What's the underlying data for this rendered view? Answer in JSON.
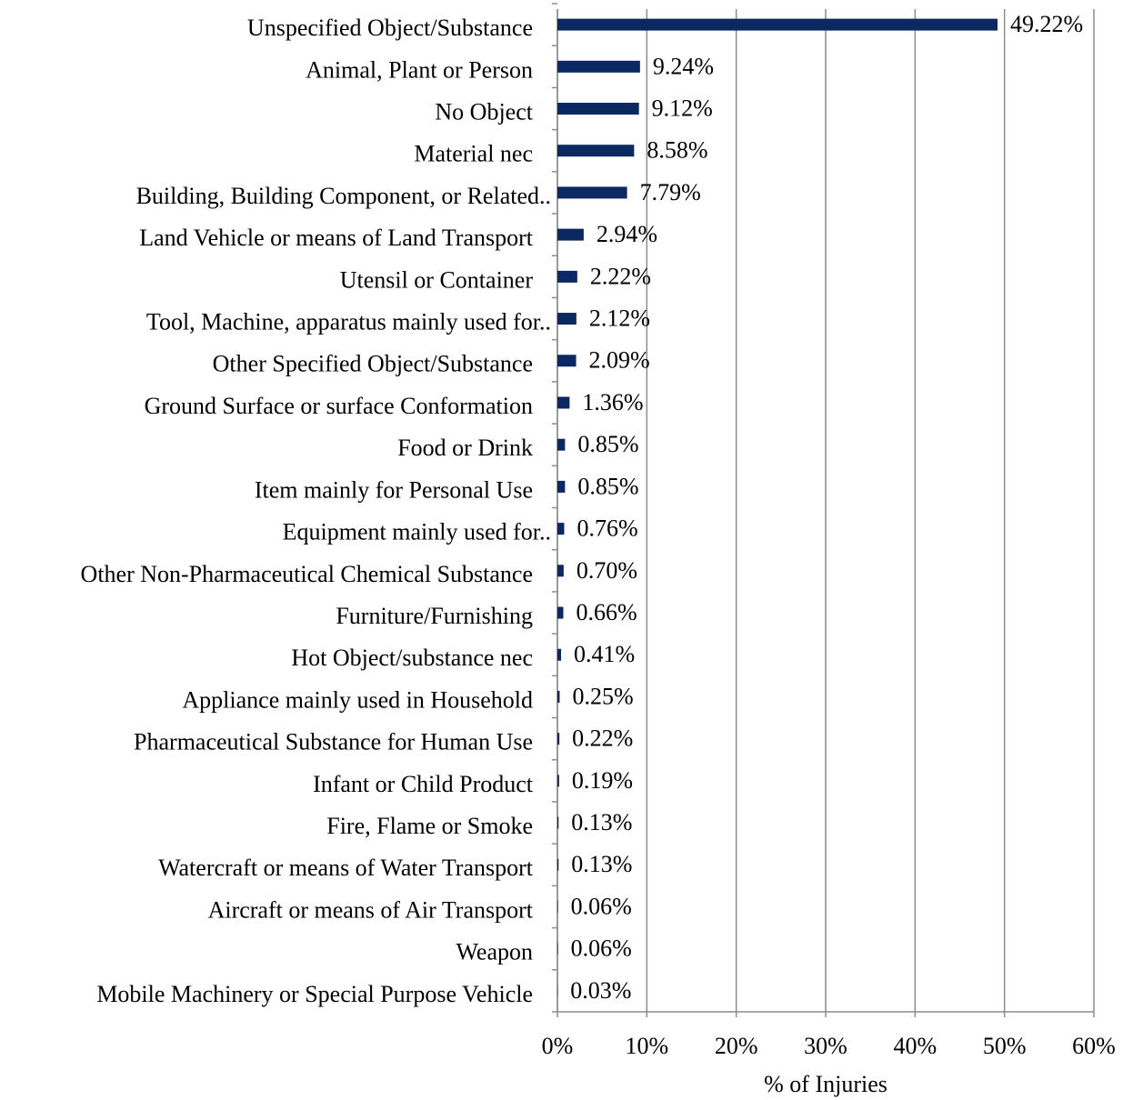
{
  "chart_data": {
    "type": "bar",
    "orientation": "horizontal",
    "x_label": "% of Injuries",
    "categories": [
      "Unspecified Object/Substance",
      "Animal, Plant or Person",
      "No Object",
      "Material nec",
      "Building, Building Component, or Related..",
      "Land Vehicle or means of Land Transport",
      "Utensil or Container",
      "Tool, Machine, apparatus mainly used for..",
      "Other Specified Object/Substance",
      "Ground Surface or surface Conformation",
      "Food or Drink",
      "Item mainly for Personal Use",
      "Equipment mainly used for..",
      "Other Non-Pharmaceutical Chemical Substance",
      "Furniture/Furnishing",
      "Hot Object/substance nec",
      "Appliance mainly used in Household",
      "Pharmaceutical Substance for Human Use",
      "Infant or Child Product",
      "Fire, Flame or Smoke",
      "Watercraft or means of Water Transport",
      "Aircraft or means of Air Transport",
      "Weapon",
      "Mobile Machinery or Special Purpose Vehicle"
    ],
    "values": [
      49.22,
      9.24,
      9.12,
      8.58,
      7.79,
      2.94,
      2.22,
      2.12,
      2.09,
      1.36,
      0.85,
      0.85,
      0.76,
      0.7,
      0.66,
      0.41,
      0.25,
      0.22,
      0.19,
      0.13,
      0.13,
      0.06,
      0.06,
      0.03
    ],
    "value_labels": [
      "49.22%",
      "9.24%",
      "9.12%",
      "8.58%",
      "7.79%",
      "2.94%",
      "2.22%",
      "2.12%",
      "2.09%",
      "1.36%",
      "0.85%",
      "0.85%",
      "0.76%",
      "0.70%",
      "0.66%",
      "0.41%",
      "0.25%",
      "0.22%",
      "0.19%",
      "0.13%",
      "0.13%",
      "0.06%",
      "0.06%",
      "0.03%"
    ],
    "color": "#0c2862",
    "xlim": [
      0,
      60
    ],
    "xticks": [
      {
        "value": 0,
        "label": "0%"
      },
      {
        "value": 10,
        "label": "10%"
      },
      {
        "value": 20,
        "label": "20%"
      },
      {
        "value": 30,
        "label": "30%"
      },
      {
        "value": 40,
        "label": "40%"
      },
      {
        "value": 50,
        "label": "50%"
      },
      {
        "value": 60,
        "label": "60%"
      }
    ],
    "grid": true
  }
}
